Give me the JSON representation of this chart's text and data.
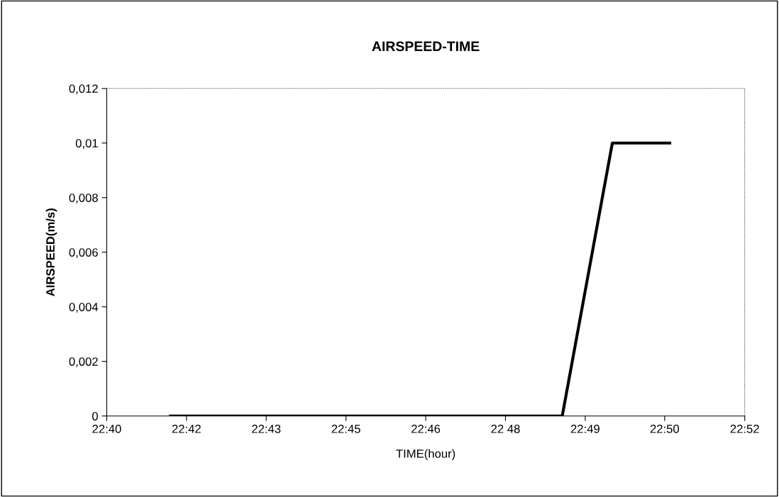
{
  "chart_data": {
    "type": "line",
    "title": "AIRSPEED-TIME",
    "xlabel": "TIME(hour)",
    "ylabel": "AIRSPEED(m/s)",
    "x": [
      22.6867,
      22.8095,
      22.8252,
      22.8432
    ],
    "series": [
      {
        "color": "#000000",
        "values": [
          0,
          0,
          0.01,
          0.01
        ]
      }
    ],
    "xlim": [
      22.6667,
      22.8667
    ],
    "xticks": [
      {
        "value": 22.6667,
        "label": "22:40"
      },
      {
        "value": 22.6917,
        "label": "22:42"
      },
      {
        "value": 22.7167,
        "label": "22:43"
      },
      {
        "value": 22.7417,
        "label": "22:45"
      },
      {
        "value": 22.7667,
        "label": "22:46"
      },
      {
        "value": 22.7917,
        "label": "22 48"
      },
      {
        "value": 22.8167,
        "label": "22:49"
      },
      {
        "value": 22.8416,
        "label": "22:50"
      },
      {
        "value": 22.8667,
        "label": "22:52"
      }
    ],
    "ylim": [
      0,
      0.012
    ],
    "yticks": [
      {
        "value": 0,
        "label": "0"
      },
      {
        "value": 0.002,
        "label": "0,002"
      },
      {
        "value": 0.004,
        "label": "0,004"
      },
      {
        "value": 0.006,
        "label": "0,006"
      },
      {
        "value": 0.008,
        "label": "0,008"
      },
      {
        "value": 0.01,
        "label": "0,01"
      },
      {
        "value": 0.012,
        "label": "0,012"
      }
    ],
    "grid": false,
    "legend": false,
    "marker": "none",
    "line_style": "solid"
  }
}
